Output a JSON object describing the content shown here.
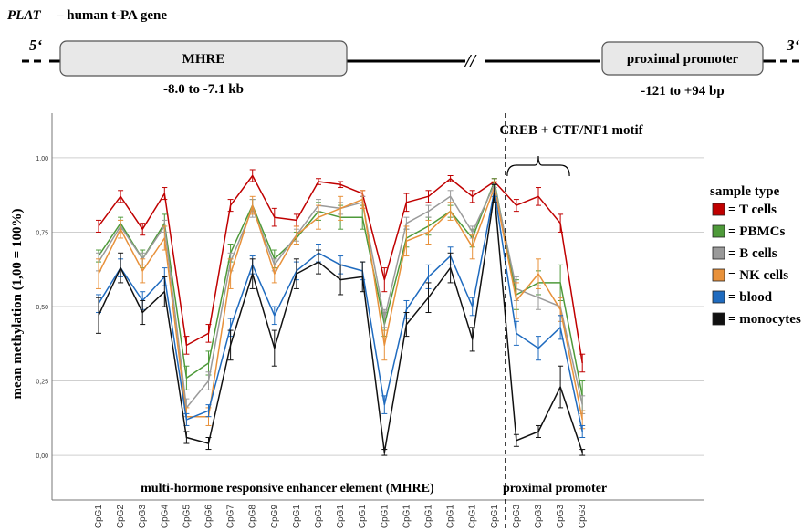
{
  "header": {
    "gene_name": "PLAT",
    "gene_desc": "– human t-PA gene",
    "five_prime": "5‘",
    "three_prime": "3‘",
    "break_mark": "//",
    "mhre_box": "MHRE",
    "mhre_range": "-8.0 to -7.1 kb",
    "promoter_box": "proximal promoter",
    "promoter_range": "-121 to +94 bp"
  },
  "chart_data": {
    "type": "line",
    "ylabel": "mean methylation (1,00 = 100%)",
    "ylim": [
      -0.15,
      1.15
    ],
    "yticks": [
      "0,00",
      "0,25",
      "0,50",
      "0,75",
      "1,00"
    ],
    "ytick_values": [
      0,
      0.25,
      0.5,
      0.75,
      1.0
    ],
    "grid": true,
    "categories": [
      "CpG1",
      "CpG2",
      "CpG3",
      "CpG4",
      "CpG5",
      "CpG6",
      "CpG7",
      "CpG8",
      "CpG9",
      "CpG1",
      "CpG1",
      "CpG1",
      "CpG1",
      "CpG1",
      "CpG1",
      "CpG1",
      "CpG1",
      "CpG1",
      "CpG1",
      "CpG3",
      "CpG3",
      "CpG3",
      "CpG3"
    ],
    "region_split_after_index": 18,
    "region_labels": [
      "multi-hormone responsive enhancer element (MHRE)",
      "proximal promoter"
    ],
    "motif_annotation": "CREB + CTF/NF1 motif",
    "motif_span_indices": [
      19,
      21
    ],
    "legend_title": "sample type",
    "legend_position": "right",
    "series": [
      {
        "name": "= T cells",
        "color": "#c00000",
        "values": [
          0.77,
          0.87,
          0.76,
          0.88,
          0.37,
          0.41,
          0.84,
          0.94,
          0.8,
          0.79,
          0.92,
          0.91,
          0.88,
          0.59,
          0.85,
          0.87,
          0.93,
          0.87,
          0.92,
          0.84,
          0.87,
          0.78,
          0.31
        ],
        "err": [
          0.02,
          0.02,
          0.02,
          0.02,
          0.03,
          0.03,
          0.02,
          0.02,
          0.03,
          0.02,
          0.01,
          0.01,
          0.01,
          0.04,
          0.03,
          0.02,
          0.01,
          0.02,
          0.01,
          0.02,
          0.03,
          0.03,
          0.03
        ]
      },
      {
        "name": "= PBMCs",
        "color": "#4e9a3a",
        "values": [
          0.67,
          0.78,
          0.66,
          0.78,
          0.26,
          0.31,
          0.68,
          0.84,
          0.66,
          0.73,
          0.82,
          0.8,
          0.8,
          0.44,
          0.73,
          0.77,
          0.82,
          0.73,
          0.92,
          0.54,
          0.58,
          0.58,
          0.2
        ],
        "err": [
          0.02,
          0.02,
          0.03,
          0.03,
          0.04,
          0.04,
          0.03,
          0.02,
          0.03,
          0.02,
          0.03,
          0.04,
          0.04,
          0.04,
          0.03,
          0.03,
          0.02,
          0.03,
          0.01,
          0.05,
          0.04,
          0.06,
          0.05
        ]
      },
      {
        "name": "= B cells",
        "color": "#9a9a9a",
        "values": [
          0.65,
          0.77,
          0.66,
          0.77,
          0.16,
          0.25,
          0.65,
          0.83,
          0.64,
          0.74,
          0.84,
          0.83,
          0.85,
          0.46,
          0.78,
          0.82,
          0.87,
          0.75,
          0.91,
          0.56,
          0.53,
          0.5,
          0.17
        ],
        "err": [
          0.03,
          0.02,
          0.02,
          0.02,
          0.03,
          0.03,
          0.03,
          0.03,
          0.02,
          0.02,
          0.02,
          0.02,
          0.02,
          0.03,
          0.02,
          0.02,
          0.02,
          0.02,
          0.01,
          0.04,
          0.04,
          0.03,
          0.03
        ]
      },
      {
        "name": "= NK cells",
        "color": "#e8913a",
        "values": [
          0.61,
          0.76,
          0.62,
          0.73,
          0.13,
          0.13,
          0.61,
          0.84,
          0.61,
          0.74,
          0.8,
          0.83,
          0.86,
          0.37,
          0.72,
          0.75,
          0.82,
          0.7,
          0.9,
          0.52,
          0.61,
          0.49,
          0.12
        ],
        "err": [
          0.05,
          0.03,
          0.04,
          0.04,
          0.03,
          0.03,
          0.05,
          0.03,
          0.03,
          0.03,
          0.04,
          0.04,
          0.03,
          0.05,
          0.05,
          0.04,
          0.03,
          0.04,
          0.02,
          0.06,
          0.05,
          0.04,
          0.03
        ]
      },
      {
        "name": "= blood",
        "color": "#1f6bbf",
        "values": [
          0.51,
          0.63,
          0.52,
          0.6,
          0.12,
          0.15,
          0.43,
          0.64,
          0.47,
          0.62,
          0.68,
          0.64,
          0.62,
          0.17,
          0.49,
          0.6,
          0.67,
          0.5,
          0.89,
          0.41,
          0.36,
          0.43,
          0.08
        ],
        "err": [
          0.03,
          0.03,
          0.03,
          0.03,
          0.02,
          0.02,
          0.03,
          0.03,
          0.03,
          0.03,
          0.03,
          0.03,
          0.03,
          0.03,
          0.03,
          0.04,
          0.03,
          0.03,
          0.02,
          0.04,
          0.04,
          0.04,
          0.02
        ]
      },
      {
        "name": "= monocytes",
        "color": "#111111",
        "values": [
          0.47,
          0.63,
          0.48,
          0.55,
          0.06,
          0.04,
          0.37,
          0.61,
          0.36,
          0.61,
          0.65,
          0.59,
          0.6,
          0.01,
          0.44,
          0.53,
          0.63,
          0.39,
          0.88,
          0.05,
          0.08,
          0.23,
          0.01
        ],
        "err": [
          0.06,
          0.05,
          0.04,
          0.05,
          0.02,
          0.02,
          0.05,
          0.05,
          0.06,
          0.05,
          0.04,
          0.05,
          0.05,
          0.01,
          0.04,
          0.05,
          0.05,
          0.04,
          0.03,
          0.02,
          0.02,
          0.07,
          0.01
        ]
      }
    ]
  }
}
